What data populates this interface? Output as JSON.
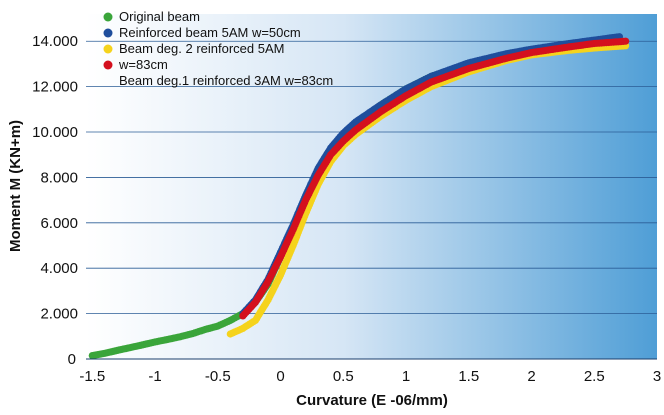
{
  "chart_data": {
    "type": "scatter",
    "title": "",
    "xlabel": "Curvature (E -06/mm)",
    "ylabel": "Moment M (KN+m)",
    "xlim": [
      -1.55,
      3
    ],
    "ylim": [
      0,
      15200
    ],
    "x_ticks": [
      -1.5,
      -1,
      -0.5,
      0,
      0.5,
      1,
      1.5,
      2,
      2.5,
      3
    ],
    "x_tick_labels": [
      "-1.5",
      "-1",
      "-0.5",
      "0",
      "0.5",
      "1",
      "1.5",
      "2",
      "2.5",
      "3"
    ],
    "y_ticks": [
      0,
      2000,
      4000,
      6000,
      8000,
      10000,
      12000,
      14000
    ],
    "y_tick_labels": [
      "0",
      "2.000",
      "4.000",
      "6.000",
      "8.000",
      "10.000",
      "12.000",
      "14.000"
    ],
    "grid": "horizontal",
    "legend_position": "top-left",
    "legend": [
      {
        "label": "Original beam",
        "color": "#3aa53a"
      },
      {
        "label": "Reinforced beam 5AM w=50cm",
        "color": "#1f4e9c"
      },
      {
        "label": "Beam deg. 2 reinforced 5AM",
        "color": "#f5d31c"
      },
      {
        "label": "w=83cm",
        "color": "#d4101e"
      },
      {
        "label": "Beam deg.1 reinforced 3AM w=83cm",
        "color": null
      }
    ],
    "series": [
      {
        "color": "#3aa53a",
        "points": [
          [
            -1.5,
            150
          ],
          [
            -1.4,
            250
          ],
          [
            -1.3,
            380
          ],
          [
            -1.2,
            500
          ],
          [
            -1.1,
            620
          ],
          [
            -1.0,
            750
          ],
          [
            -0.9,
            860
          ],
          [
            -0.8,
            980
          ],
          [
            -0.7,
            1120
          ],
          [
            -0.6,
            1300
          ],
          [
            -0.5,
            1450
          ],
          [
            -0.4,
            1700
          ],
          [
            -0.3,
            2000
          ],
          [
            -0.2,
            2500
          ],
          [
            -0.1,
            3300
          ],
          [
            0.0,
            4500
          ],
          [
            0.1,
            5700
          ],
          [
            0.2,
            7000
          ],
          [
            0.3,
            8300
          ],
          [
            0.4,
            9200
          ],
          [
            0.5,
            9900
          ],
          [
            0.6,
            10400
          ],
          [
            0.8,
            11200
          ],
          [
            1.0,
            11900
          ],
          [
            1.2,
            12450
          ],
          [
            1.5,
            13000
          ],
          [
            1.8,
            13400
          ],
          [
            2.0,
            13600
          ],
          [
            2.3,
            13850
          ],
          [
            2.5,
            14000
          ],
          [
            2.7,
            14100
          ]
        ]
      },
      {
        "color": "#1f4e9c",
        "points": [
          [
            -0.3,
            2000
          ],
          [
            -0.2,
            2600
          ],
          [
            -0.1,
            3500
          ],
          [
            0.0,
            4700
          ],
          [
            0.1,
            5900
          ],
          [
            0.2,
            7200
          ],
          [
            0.3,
            8400
          ],
          [
            0.4,
            9300
          ],
          [
            0.5,
            9950
          ],
          [
            0.6,
            10450
          ],
          [
            0.8,
            11200
          ],
          [
            1.0,
            11900
          ],
          [
            1.2,
            12450
          ],
          [
            1.5,
            13050
          ],
          [
            1.8,
            13450
          ],
          [
            2.0,
            13650
          ],
          [
            2.3,
            13900
          ],
          [
            2.5,
            14050
          ],
          [
            2.7,
            14200
          ]
        ]
      },
      {
        "color": "#f5d31c",
        "points": [
          [
            -0.4,
            1100
          ],
          [
            -0.3,
            1350
          ],
          [
            -0.2,
            1700
          ],
          [
            -0.1,
            2600
          ],
          [
            0.0,
            3700
          ],
          [
            0.1,
            5000
          ],
          [
            0.2,
            6400
          ],
          [
            0.3,
            7700
          ],
          [
            0.4,
            8700
          ],
          [
            0.5,
            9400
          ],
          [
            0.6,
            9900
          ],
          [
            0.8,
            10700
          ],
          [
            1.0,
            11400
          ],
          [
            1.2,
            12000
          ],
          [
            1.5,
            12650
          ],
          [
            1.8,
            13150
          ],
          [
            2.0,
            13400
          ],
          [
            2.3,
            13600
          ],
          [
            2.5,
            13700
          ],
          [
            2.75,
            13800
          ]
        ]
      },
      {
        "color": "#d4101e",
        "points": [
          [
            -0.3,
            1900
          ],
          [
            -0.2,
            2500
          ],
          [
            -0.1,
            3400
          ],
          [
            0.0,
            4500
          ],
          [
            0.1,
            5700
          ],
          [
            0.2,
            7000
          ],
          [
            0.3,
            8100
          ],
          [
            0.4,
            9000
          ],
          [
            0.5,
            9600
          ],
          [
            0.6,
            10100
          ],
          [
            0.8,
            10900
          ],
          [
            1.0,
            11600
          ],
          [
            1.2,
            12200
          ],
          [
            1.5,
            12800
          ],
          [
            1.8,
            13250
          ],
          [
            2.0,
            13500
          ],
          [
            2.3,
            13750
          ],
          [
            2.5,
            13900
          ],
          [
            2.75,
            14000
          ]
        ]
      }
    ]
  }
}
